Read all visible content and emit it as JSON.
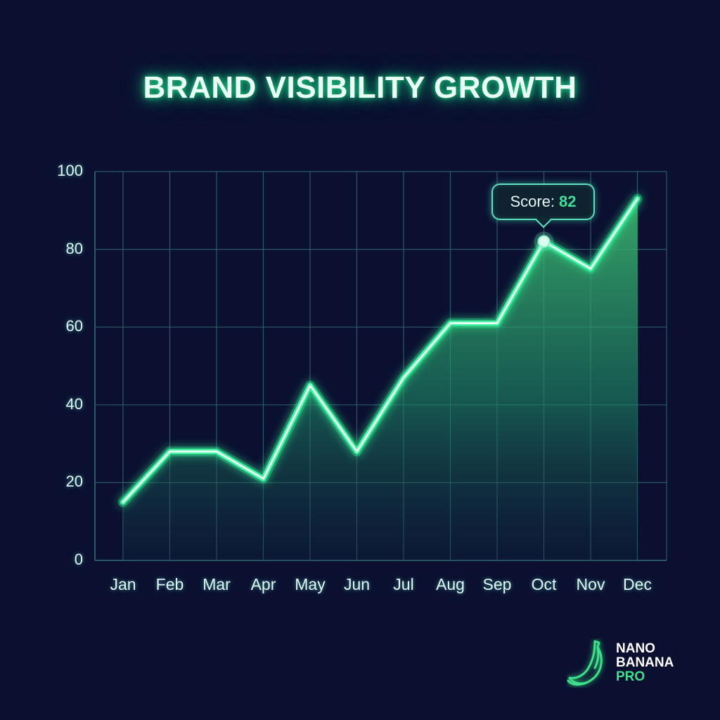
{
  "title": "BRAND VISIBILITY GROWTH",
  "tooltip": {
    "label": "Score:",
    "value": "82",
    "month": "Oct"
  },
  "logo": {
    "line1": "NANO",
    "line2": "BANANA",
    "line3": "PRO",
    "icon": "banana-icon"
  },
  "colors": {
    "background": "#0b1030",
    "grid": "#2a5a66",
    "line": "#3ff0a0",
    "line_core": "#e8fff4",
    "area_top": "#3fbf70",
    "area_bottom": "#0f2a40",
    "tooltip_value": "#3fe09a"
  },
  "chart_data": {
    "type": "area",
    "title": "BRAND VISIBILITY GROWTH",
    "xlabel": "",
    "ylabel": "",
    "categories": [
      "Jan",
      "Feb",
      "Mar",
      "Apr",
      "May",
      "Jun",
      "Jul",
      "Aug",
      "Sep",
      "Oct",
      "Nov",
      "Dec"
    ],
    "series": [
      {
        "name": "Score",
        "values": [
          15,
          28,
          28,
          21,
          45,
          28,
          47,
          61,
          61,
          82,
          75,
          93
        ]
      }
    ],
    "ylim": [
      0,
      100
    ],
    "yticks": [
      0,
      20,
      40,
      60,
      80,
      100
    ],
    "grid": true,
    "legend": "none",
    "annotations": [
      {
        "x": "Oct",
        "y": 82,
        "text": "Score: 82"
      }
    ]
  }
}
